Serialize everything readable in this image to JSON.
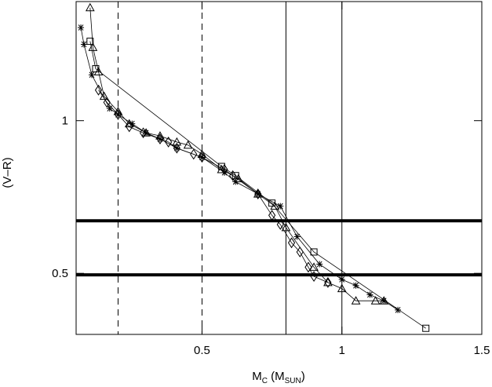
{
  "chart_data": {
    "type": "scatter",
    "xlabel_parts": [
      "M",
      "C",
      " (M",
      "SUN",
      ")"
    ],
    "ylabel": "(V–R)",
    "xlim": [
      0.05,
      1.5
    ],
    "ylim": [
      0.3,
      1.39
    ],
    "xticks": [
      0.5,
      1,
      1.5
    ],
    "yticks": [
      0.5,
      1
    ],
    "hlines": [
      0.672,
      0.495
    ],
    "vlines_dashed": [
      0.2,
      0.5
    ],
    "vlines_solid": [
      0.8,
      1.0
    ],
    "color": "#000000",
    "series": [
      {
        "marker": "asterisk",
        "x": [
          0.067,
          0.078,
          0.106,
          0.17,
          0.2,
          0.25,
          0.3,
          0.35,
          0.41,
          0.5,
          0.58,
          0.62,
          0.7,
          0.78,
          0.84,
          0.92,
          1.0,
          1.05,
          1.1,
          1.15,
          1.2
        ],
        "values": [
          1.305,
          1.25,
          1.15,
          1.04,
          1.02,
          0.99,
          0.96,
          0.94,
          0.91,
          0.88,
          0.83,
          0.8,
          0.76,
          0.72,
          0.62,
          0.53,
          0.48,
          0.46,
          0.43,
          0.41,
          0.38
        ]
      },
      {
        "marker": "triangle",
        "x": [
          0.1,
          0.11,
          0.13,
          0.15,
          0.2,
          0.24,
          0.3,
          0.35,
          0.41,
          0.45,
          0.5,
          0.57,
          0.63,
          0.7,
          0.76,
          0.8,
          0.9,
          0.95,
          1.0,
          1.05,
          1.12,
          1.15
        ],
        "values": [
          1.37,
          1.24,
          1.16,
          1.08,
          1.03,
          0.99,
          0.96,
          0.95,
          0.93,
          0.92,
          0.89,
          0.84,
          0.81,
          0.76,
          0.72,
          0.65,
          0.52,
          0.47,
          0.45,
          0.41,
          0.41,
          0.41
        ]
      },
      {
        "marker": "diamond",
        "x": [
          0.13,
          0.16,
          0.2,
          0.24,
          0.29,
          0.35,
          0.38,
          0.41,
          0.47,
          0.5,
          0.58,
          0.61,
          0.7,
          0.75,
          0.78,
          0.82,
          0.85,
          0.88,
          0.9,
          0.95
        ],
        "values": [
          1.1,
          1.06,
          1.02,
          0.98,
          0.96,
          0.94,
          0.93,
          0.91,
          0.89,
          0.88,
          0.84,
          0.82,
          0.76,
          0.69,
          0.66,
          0.6,
          0.57,
          0.52,
          0.49,
          0.47
        ]
      },
      {
        "marker": "square",
        "x": [
          0.1,
          0.12,
          0.57,
          0.62,
          0.75,
          0.9,
          1.3
        ],
        "values": [
          1.26,
          1.17,
          0.85,
          0.82,
          0.73,
          0.57,
          0.32
        ]
      }
    ]
  }
}
